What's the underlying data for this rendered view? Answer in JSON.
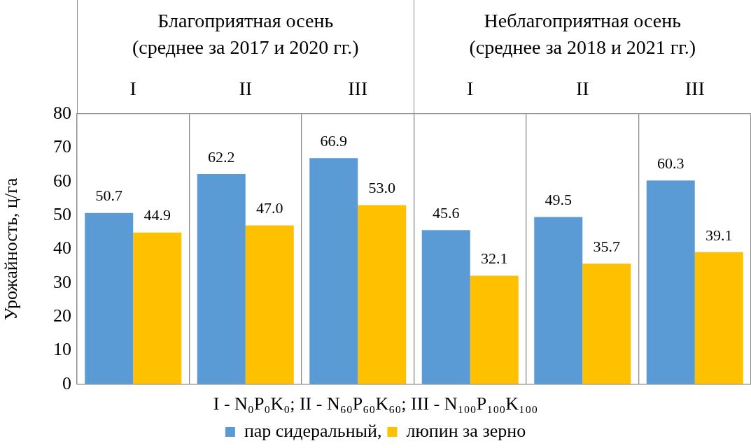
{
  "chart_data": {
    "type": "bar",
    "categories": [
      "I",
      "II",
      "III",
      "I",
      "II",
      "III"
    ],
    "annotations": [
      "Благоприятная осень\n(среднее за 2017 и 2020 гг.)",
      "Неблагоприятная осень\n(среднее за 2018 и 2021 гг.)"
    ],
    "xlabel": "I - N₀P₀K₀; II - N₆₀P₆₀K₆₀; III - N₁₀₀P₁₀₀K₁₀₀",
    "ylabel": "Урожайность, ц/га",
    "series": [
      {
        "name": "пар сидеральный,",
        "color": "#5b9bd5",
        "values": [
          50.7,
          62.2,
          66.9,
          45.6,
          49.5,
          60.3
        ]
      },
      {
        "name": "люпин за зерно",
        "color": "#ffc000",
        "values": [
          44.9,
          47.0,
          53.0,
          32.1,
          35.7,
          39.1
        ]
      }
    ],
    "value_labels": [
      [
        "50.7",
        "62.2",
        "66.9",
        "45.6",
        "49.5",
        "60.3"
      ],
      [
        "44.9",
        "47.0",
        "53.0",
        "32.1",
        "35.7",
        "39.1"
      ]
    ],
    "ylim": [
      0,
      80
    ],
    "yticks": [
      0,
      10,
      20,
      30,
      40,
      50,
      60,
      70,
      80
    ],
    "grid": "x",
    "legend": "bottom"
  }
}
